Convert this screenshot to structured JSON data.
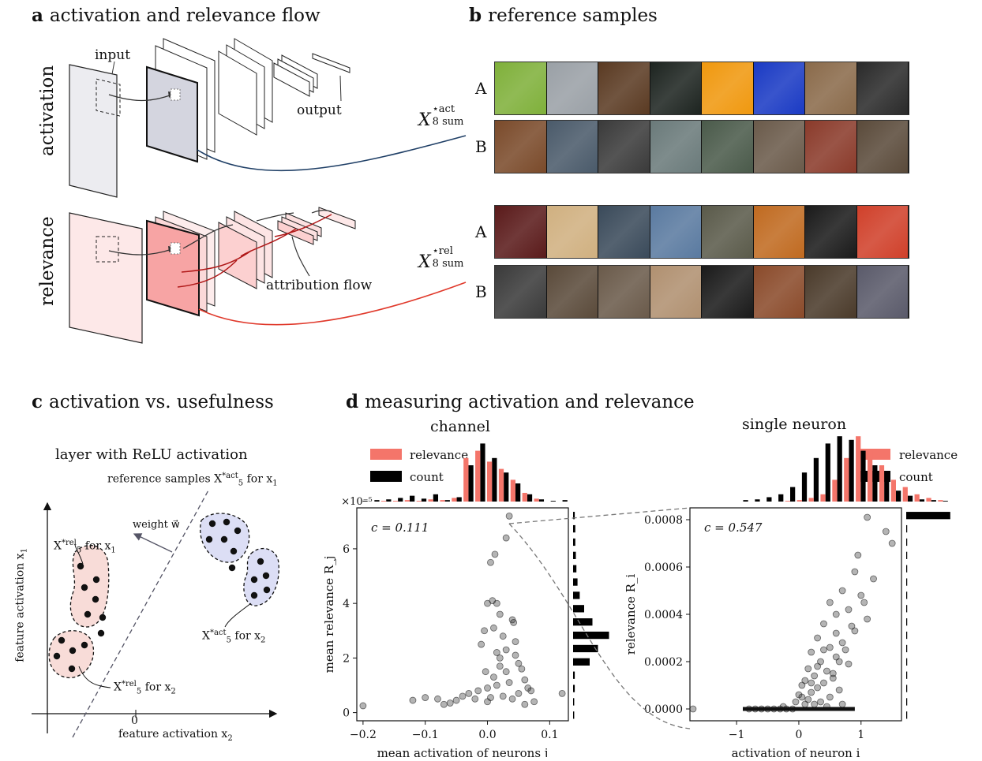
{
  "panel_a": {
    "letter": "a",
    "title": "activation and relevance flow",
    "row_activation": "activation",
    "row_relevance": "relevance",
    "input_label": "input",
    "output_label": "output",
    "attribution_label": "attribution flow",
    "act_link_main": "X",
    "act_link_sup": "⋆act",
    "act_link_sub": "8 sum",
    "rel_link_main": "X",
    "rel_link_sup": "⋆rel",
    "rel_link_sub": "8 sum",
    "colors": {
      "activation_line": "#1f3f66",
      "relevance_line": "#e0392b",
      "act_layer": "#d4d5df",
      "rel_layer": "#f7a4a4"
    }
  },
  "panel_b": {
    "letter": "b",
    "title": "reference samples",
    "rows": [
      {
        "label": "A",
        "colors": [
          "#7fb03a",
          "#9aa0a6",
          "#5a3a22",
          "#1d2420",
          "#f0980e",
          "#1a3ac4",
          "#8a6a4a",
          "#2a2a2a"
        ]
      },
      {
        "label": "B",
        "colors": [
          "#7a4a2a",
          "#4a5a6a",
          "#3a3a3a",
          "#6a7a7a",
          "#4a5a4a",
          "#6a5a4a",
          "#8a3a2a",
          "#5a4a3a"
        ]
      },
      {
        "label": "A",
        "colors": [
          "#5a1a1a",
          "#d0b080",
          "#3a4a5a",
          "#5a7aa0",
          "#5a5a4a",
          "#c06a20",
          "#1a1a1a",
          "#d0402a"
        ]
      },
      {
        "label": "B",
        "colors": [
          "#3a3a3a",
          "#5a4a3a",
          "#6a5a4a",
          "#b09070",
          "#1a1a1a",
          "#8a4a2a",
          "#4a3a2a",
          "#5a5a6a"
        ]
      }
    ]
  },
  "panel_c": {
    "letter": "c",
    "title": "activation vs. usefulness",
    "subtitle": "layer with ReLU activation",
    "ref_samples": "reference samples X",
    "ref_sup": "*act",
    "ref_sub": "5",
    "ref_for": "for x",
    "ref_for_sub": "1",
    "weight": "weight w⃗",
    "rel_x1": "X",
    "rel_x1_sup": "*rel",
    "rel_x1_sub": "5",
    "rel_x1_for": "for x",
    "rel_x1_for_sub": "1",
    "act_x2": "X",
    "act_x2_sup": "*act",
    "act_x2_sub": "5",
    "act_x2_for": "for x",
    "act_x2_for_sub": "2",
    "rel_x2": "X",
    "rel_x2_sup": "*rel",
    "rel_x2_sub": "5",
    "rel_x2_for": "for x",
    "rel_x2_for_sub": "2",
    "xlabel": "feature activation x",
    "xlabel_sub": "2",
    "ylabel": "feature activation x",
    "ylabel_sub": "1",
    "zero": "0"
  },
  "panel_d": {
    "letter": "d",
    "title": "measuring activation and relevance",
    "channel": "channel",
    "single_neuron": "single neuron",
    "legend_relevance": "relevance",
    "legend_count": "count",
    "colors": {
      "relevance": "#f4756a",
      "count": "#000000"
    }
  },
  "chart_data": [
    {
      "type": "scatter",
      "title": "channel",
      "annotation": "c = 0.111",
      "xlabel": "mean activation of neurons j",
      "ylabel": "mean relevance R_j",
      "scale_note": "×10⁻⁵",
      "xlim": [
        -0.21,
        0.13
      ],
      "ylim": [
        -0.3,
        7.5
      ],
      "xticks": [
        -0.2,
        -0.1,
        0.0,
        0.1
      ],
      "xtick_labels": [
        "−0.2",
        "−0.1",
        "0.0",
        "0.1"
      ],
      "yticks": [
        0,
        2,
        4,
        6
      ],
      "ytick_labels": [
        "0",
        "2",
        "4",
        "6"
      ],
      "series": [
        {
          "points": [
            [
              -0.2,
              0.25
            ],
            [
              0.035,
              7.2
            ],
            [
              0.03,
              6.4
            ],
            [
              0.012,
              5.8
            ],
            [
              0.005,
              5.5
            ],
            [
              0.008,
              4.1
            ],
            [
              0.015,
              4.0
            ],
            [
              0.0,
              4.0
            ],
            [
              0.02,
              3.6
            ],
            [
              0.04,
              3.4
            ],
            [
              0.042,
              3.3
            ],
            [
              0.01,
              3.1
            ],
            [
              -0.005,
              3.0
            ],
            [
              0.025,
              2.8
            ],
            [
              -0.01,
              2.5
            ],
            [
              0.03,
              2.3
            ],
            [
              0.045,
              2.1
            ],
            [
              0.02,
              2.0
            ],
            [
              0.05,
              1.8
            ],
            [
              0.055,
              1.6
            ],
            [
              -0.003,
              1.5
            ],
            [
              0.01,
              1.3
            ],
            [
              0.06,
              1.2
            ],
            [
              0.035,
              1.1
            ],
            [
              0.015,
              1.0
            ],
            [
              0.0,
              0.9
            ],
            [
              0.07,
              0.8
            ],
            [
              0.05,
              0.7
            ],
            [
              0.025,
              0.6
            ],
            [
              0.005,
              0.55
            ],
            [
              -0.02,
              0.5
            ],
            [
              -0.05,
              0.45
            ],
            [
              -0.06,
              0.35
            ],
            [
              -0.08,
              0.5
            ],
            [
              -0.1,
              0.55
            ],
            [
              -0.12,
              0.45
            ],
            [
              -0.07,
              0.3
            ],
            [
              -0.04,
              0.6
            ],
            [
              -0.03,
              0.7
            ],
            [
              0.0,
              0.4
            ],
            [
              0.04,
              0.5
            ],
            [
              0.065,
              0.9
            ],
            [
              0.12,
              0.7
            ],
            [
              0.03,
              1.5
            ],
            [
              0.015,
              2.2
            ],
            [
              0.045,
              2.6
            ],
            [
              0.02,
              1.7
            ],
            [
              -0.015,
              0.8
            ],
            [
              0.06,
              0.3
            ],
            [
              0.075,
              0.4
            ]
          ]
        }
      ],
      "side_histogram": [
        0.02,
        0.02,
        0.03,
        0.03,
        0.3,
        0.45,
        0.65,
        0.35,
        0.2,
        0.12,
        0.08,
        0.06,
        0.05,
        0.04,
        0.04,
        0.03
      ],
      "top_histogram": {
        "count": [
          0.01,
          0.02,
          0.03,
          0.05,
          0.08,
          0.04,
          0.1,
          0.02,
          0.06,
          0.5,
          0.8,
          0.6,
          0.4,
          0.25,
          0.1,
          0.03,
          0.01,
          0.02
        ],
        "relevance": [
          0.0,
          0.0,
          0.01,
          0.01,
          0.02,
          0.01,
          0.03,
          0.02,
          0.05,
          0.6,
          0.7,
          0.55,
          0.45,
          0.3,
          0.12,
          0.04,
          0.0,
          0.0
        ]
      }
    },
    {
      "type": "scatter",
      "title": "single neuron",
      "annotation": "c = 0.547",
      "xlabel": "activation of neuron i",
      "ylabel": "relevance R_i",
      "xlim": [
        -1.75,
        1.65
      ],
      "ylim": [
        -5e-05,
        0.00085
      ],
      "xticks": [
        -1,
        0,
        1
      ],
      "xtick_labels": [
        "−1",
        "0",
        "1"
      ],
      "yticks": [
        0.0,
        0.0002,
        0.0004,
        0.0006,
        0.0008
      ],
      "ytick_labels": [
        "0.0000",
        "0.0002",
        "0.0004",
        "0.0006",
        "0.0008"
      ],
      "series": [
        {
          "points": [
            [
              -1.7,
              0.0
            ],
            [
              1.1,
              0.00081
            ],
            [
              1.4,
              0.00075
            ],
            [
              1.5,
              0.0007
            ],
            [
              0.95,
              0.00065
            ],
            [
              0.9,
              0.00058
            ],
            [
              1.2,
              0.00055
            ],
            [
              0.7,
              0.0005
            ],
            [
              1.0,
              0.00048
            ],
            [
              0.5,
              0.00045
            ],
            [
              0.8,
              0.00042
            ],
            [
              0.6,
              0.0004
            ],
            [
              1.1,
              0.00038
            ],
            [
              0.4,
              0.00036
            ],
            [
              0.9,
              0.00033
            ],
            [
              0.3,
              0.0003
            ],
            [
              0.7,
              0.00028
            ],
            [
              0.5,
              0.00026
            ],
            [
              0.2,
              0.00024
            ],
            [
              0.6,
              0.00022
            ],
            [
              0.35,
              0.0002
            ],
            [
              0.8,
              0.00019
            ],
            [
              0.15,
              0.00017
            ],
            [
              0.45,
              0.00016
            ],
            [
              0.25,
              0.00014
            ],
            [
              0.55,
              0.00013
            ],
            [
              0.1,
              0.00012
            ],
            [
              0.4,
              0.00011
            ],
            [
              0.05,
              0.0001
            ],
            [
              0.3,
              9e-05
            ],
            [
              0.65,
              8e-05
            ],
            [
              0.2,
              7e-05
            ],
            [
              0.0,
              6e-05
            ],
            [
              0.5,
              5e-05
            ],
            [
              0.15,
              4e-05
            ],
            [
              0.35,
              3e-05
            ],
            [
              -0.05,
              3e-05
            ],
            [
              0.1,
              2e-05
            ],
            [
              0.25,
              2e-05
            ],
            [
              0.45,
              1e-05
            ],
            [
              0.7,
              2e-05
            ],
            [
              -0.1,
              0.0
            ],
            [
              -0.2,
              0.0
            ],
            [
              -0.3,
              0.0
            ],
            [
              -0.4,
              0.0
            ],
            [
              -0.5,
              0.0
            ],
            [
              -0.6,
              0.0
            ],
            [
              -0.7,
              0.0
            ],
            [
              -0.8,
              0.0
            ],
            [
              -0.25,
              1e-05
            ],
            [
              0.55,
              0.00015
            ],
            [
              0.75,
              0.00025
            ],
            [
              0.85,
              0.00035
            ],
            [
              1.05,
              0.00045
            ],
            [
              0.6,
              0.00032
            ],
            [
              0.4,
              0.00025
            ],
            [
              0.3,
              0.00018
            ],
            [
              0.2,
              0.00011
            ],
            [
              0.05,
              5e-05
            ],
            [
              0.65,
              0.0002
            ]
          ]
        }
      ],
      "side_histogram": [
        0.02,
        0.02,
        0.02,
        0.02,
        0.02,
        0.02,
        0.02,
        0.02,
        0.02,
        0.02,
        0.02,
        0.02,
        0.02,
        0.02,
        0.02,
        0.9
      ],
      "top_histogram": {
        "count": [
          0.02,
          0.03,
          0.06,
          0.1,
          0.2,
          0.4,
          0.6,
          0.8,
          0.9,
          0.85,
          0.7,
          0.5,
          0.3,
          0.15,
          0.08,
          0.03,
          0.02,
          0.01
        ],
        "relevance": [
          0.0,
          0.0,
          0.0,
          0.0,
          0.01,
          0.02,
          0.05,
          0.1,
          0.3,
          0.6,
          0.9,
          0.7,
          0.5,
          0.3,
          0.2,
          0.1,
          0.05,
          0.02
        ]
      }
    }
  ]
}
